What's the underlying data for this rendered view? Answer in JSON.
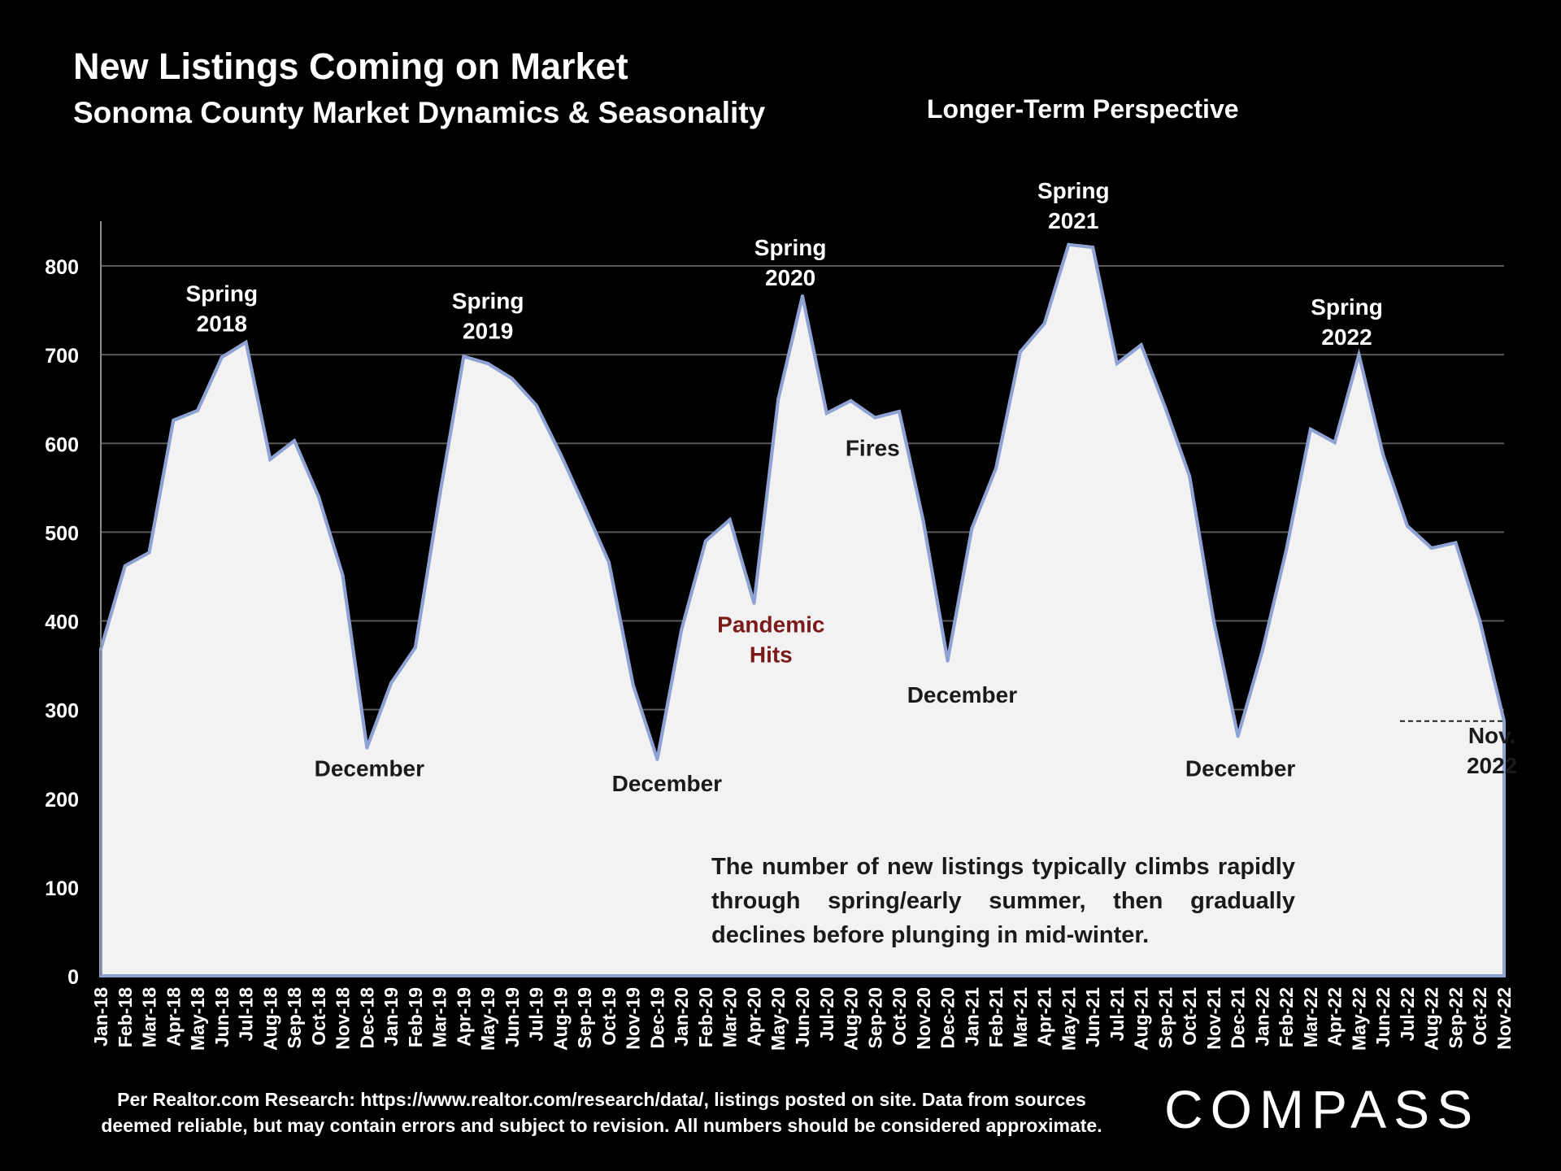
{
  "title": "New Listings Coming on Market",
  "subtitle": "Sonoma County Market Dynamics & Seasonality",
  "perspective": "Longer-Term Perspective",
  "footnote_line1": "Per Realtor.com Research:  https://www.realtor.com/research/data/, listings posted on site. Data from sources",
  "footnote_line2": "deemed reliable, but may contain errors and subject to revision. All numbers should be considered approximate.",
  "logo_text": "COMPASS",
  "colors": {
    "background": "#000000",
    "area_fill": "#f2f2f2",
    "line": "#8fa2d4",
    "pandemic": "#7a1a1a",
    "text_dark": "#1a1a1a"
  },
  "chart_data": {
    "type": "area",
    "ylim": [
      0,
      850
    ],
    "yticks": [
      0,
      100,
      200,
      300,
      400,
      500,
      600,
      700,
      800
    ],
    "grid": true,
    "categories": [
      "Jan-18",
      "Feb-18",
      "Mar-18",
      "Apr-18",
      "May-18",
      "Jun-18",
      "Jul-18",
      "Aug-18",
      "Sep-18",
      "Oct-18",
      "Nov-18",
      "Dec-18",
      "Jan-19",
      "Feb-19",
      "Mar-19",
      "Apr-19",
      "May-19",
      "Jun-19",
      "Jul-19",
      "Aug-19",
      "Sep-19",
      "Oct-19",
      "Nov-19",
      "Dec-19",
      "Jan-20",
      "Feb-20",
      "Mar-20",
      "Apr-20",
      "May-20",
      "Jun-20",
      "Jul-20",
      "Aug-20",
      "Sep-20",
      "Oct-20",
      "Nov-20",
      "Dec-20",
      "Jan-21",
      "Feb-21",
      "Mar-21",
      "Apr-21",
      "May-21",
      "Jun-21",
      "Jul-21",
      "Aug-21",
      "Sep-21",
      "Oct-21",
      "Nov-21",
      "Dec-21",
      "Jan-22",
      "Feb-22",
      "Mar-22",
      "Apr-22",
      "May-22",
      "Jun-22",
      "Jul-22",
      "Aug-22",
      "Sep-22",
      "Oct-22",
      "Nov-22"
    ],
    "values": [
      368,
      462,
      477,
      626,
      637,
      697,
      714,
      582,
      603,
      540,
      451,
      257,
      330,
      370,
      540,
      698,
      690,
      673,
      643,
      588,
      528,
      466,
      328,
      244,
      390,
      490,
      514,
      420,
      650,
      766,
      634,
      648,
      629,
      636,
      512,
      355,
      504,
      572,
      703,
      735,
      824,
      821,
      690,
      711,
      640,
      563,
      400,
      270,
      365,
      480,
      616,
      601,
      700,
      587,
      507,
      482,
      488,
      400,
      287
    ],
    "annotations": [
      {
        "id": "spring2018",
        "lines": [
          "Spring",
          "2018"
        ],
        "x": 5,
        "y": 760,
        "color": "white"
      },
      {
        "id": "spring2019",
        "lines": [
          "Spring",
          "2019"
        ],
        "x": 16,
        "y": 752,
        "color": "white"
      },
      {
        "id": "spring2020",
        "lines": [
          "Spring",
          "2020"
        ],
        "x": 28.5,
        "y": 812,
        "color": "white"
      },
      {
        "id": "spring2021",
        "lines": [
          "Spring",
          "2021"
        ],
        "x": 40.2,
        "y": 876,
        "color": "white"
      },
      {
        "id": "spring2022",
        "lines": [
          "Spring",
          "2022"
        ],
        "x": 51.5,
        "y": 745,
        "color": "white"
      },
      {
        "id": "dec2018",
        "lines": [
          "December"
        ],
        "x": 11.1,
        "y": 225,
        "color": "dark"
      },
      {
        "id": "dec2019",
        "lines": [
          "December"
        ],
        "x": 23.4,
        "y": 208,
        "color": "dark"
      },
      {
        "id": "dec2020",
        "lines": [
          "December"
        ],
        "x": 35.6,
        "y": 308,
        "color": "dark"
      },
      {
        "id": "dec2021",
        "lines": [
          "December"
        ],
        "x": 47.1,
        "y": 225,
        "color": "dark"
      },
      {
        "id": "fires",
        "lines": [
          "Fires"
        ],
        "x": 31.9,
        "y": 586,
        "color": "dark"
      },
      {
        "id": "pandemic",
        "lines": [
          "Pandemic",
          "Hits"
        ],
        "x": 27.7,
        "y": 387,
        "color": "pandemic"
      },
      {
        "id": "nov2022",
        "lines": [
          "Nov.",
          "2022"
        ],
        "x": 57.5,
        "y": 262,
        "color": "dark"
      }
    ],
    "summary_text": "The number of new listings typically climbs rapidly through spring/early summer, then gradually declines before plunging in mid-winter."
  }
}
